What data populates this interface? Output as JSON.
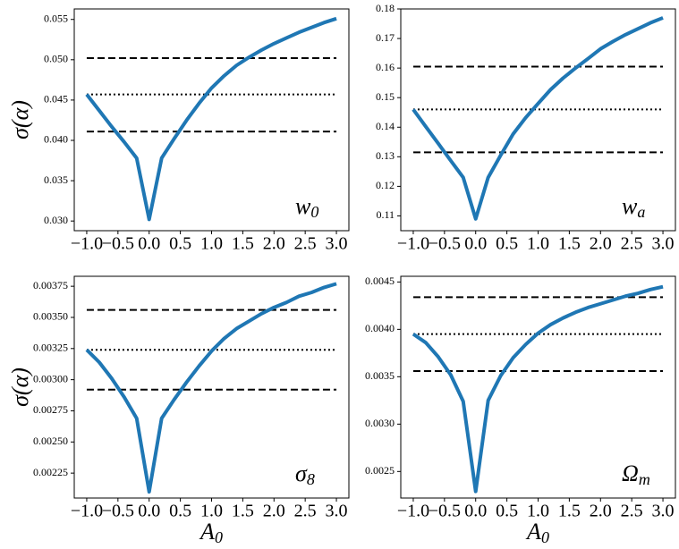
{
  "chart_data": [
    {
      "type": "line",
      "ylabel": "σ(α)",
      "annotation": {
        "text": "w",
        "sub": "0"
      },
      "x": [
        -1.0,
        -0.8,
        -0.6,
        -0.4,
        -0.2,
        0.0,
        0.2,
        0.4,
        0.6,
        0.8,
        1.0,
        1.2,
        1.4,
        1.6,
        1.8,
        2.0,
        2.2,
        2.4,
        2.6,
        2.8,
        3.0
      ],
      "series": [
        {
          "color": "#1f77b4",
          "values": [
            0.0457,
            0.0437,
            0.0417,
            0.0398,
            0.0378,
            0.0302,
            0.0378,
            0.0402,
            0.0425,
            0.0446,
            0.0465,
            0.048,
            0.0493,
            0.0503,
            0.0512,
            0.052,
            0.0527,
            0.0534,
            0.054,
            0.0546,
            0.0551
          ]
        }
      ],
      "hlines": [
        {
          "value": 0.0502,
          "style": "dashed"
        },
        {
          "value": 0.0457,
          "style": "dotted"
        },
        {
          "value": 0.0411,
          "style": "dashed"
        }
      ],
      "xlim": [
        -1.2,
        3.2
      ],
      "ylim": [
        0.0288,
        0.0563
      ],
      "xticks": [
        {
          "value": -1.0,
          "label": "−1.0"
        },
        {
          "value": -0.5,
          "label": "−0.5"
        },
        {
          "value": 0.0,
          "label": "0.0"
        },
        {
          "value": 0.5,
          "label": "0.5"
        },
        {
          "value": 1.0,
          "label": "1.0"
        },
        {
          "value": 1.5,
          "label": "1.5"
        },
        {
          "value": 2.0,
          "label": "2.0"
        },
        {
          "value": 2.5,
          "label": "2.5"
        },
        {
          "value": 3.0,
          "label": "3.0"
        }
      ],
      "yticks": [
        {
          "value": 0.03,
          "label": "0.030"
        },
        0.035,
        {
          "value": 0.04,
          "label": "0.040"
        },
        0.045,
        {
          "value": 0.05,
          "label": "0.050"
        },
        0.055
      ]
    },
    {
      "type": "line",
      "annotation": {
        "text": "w",
        "sub": "a"
      },
      "x": [
        -1.0,
        -0.8,
        -0.6,
        -0.4,
        -0.2,
        0.0,
        0.2,
        0.4,
        0.6,
        0.8,
        1.0,
        1.2,
        1.4,
        1.6,
        1.8,
        2.0,
        2.2,
        2.4,
        2.6,
        2.8,
        3.0
      ],
      "series": [
        {
          "color": "#1f77b4",
          "values": [
            0.146,
            0.1402,
            0.1345,
            0.1287,
            0.123,
            0.109,
            0.123,
            0.1305,
            0.1377,
            0.1432,
            0.148,
            0.1527,
            0.1566,
            0.16,
            0.1632,
            0.1665,
            0.169,
            0.1713,
            0.1733,
            0.1753,
            0.177
          ]
        }
      ],
      "hlines": [
        {
          "value": 0.1605,
          "style": "dashed"
        },
        {
          "value": 0.146,
          "style": "dotted"
        },
        {
          "value": 0.1315,
          "style": "dashed"
        }
      ],
      "xlim": [
        -1.2,
        3.2
      ],
      "ylim": [
        0.105,
        0.18
      ],
      "xticks": [
        {
          "value": -1.0,
          "label": "−1.0"
        },
        {
          "value": -0.5,
          "label": "−0.5"
        },
        {
          "value": 0.0,
          "label": "0.0"
        },
        {
          "value": 0.5,
          "label": "0.5"
        },
        {
          "value": 1.0,
          "label": "1.0"
        },
        {
          "value": 1.5,
          "label": "1.5"
        },
        {
          "value": 2.0,
          "label": "2.0"
        },
        {
          "value": 2.5,
          "label": "2.5"
        },
        {
          "value": 3.0,
          "label": "3.0"
        }
      ],
      "yticks": [
        0.11,
        0.12,
        0.13,
        0.14,
        0.15,
        0.16,
        0.17,
        0.18
      ]
    },
    {
      "type": "line",
      "ylabel": "σ(α)",
      "xlabel": {
        "text": "A",
        "sub": "0"
      },
      "annotation": {
        "text": "σ",
        "sub": "8"
      },
      "x": [
        -1.0,
        -0.8,
        -0.6,
        -0.4,
        -0.2,
        0.0,
        0.2,
        0.4,
        0.6,
        0.8,
        1.0,
        1.2,
        1.4,
        1.6,
        1.8,
        2.0,
        2.2,
        2.4,
        2.6,
        2.8,
        3.0
      ],
      "series": [
        {
          "color": "#1f77b4",
          "values": [
            0.00324,
            0.00314,
            0.00301,
            0.00286,
            0.00269,
            0.0021,
            0.00269,
            0.00284,
            0.00298,
            0.00311,
            0.00323,
            0.00333,
            0.00341,
            0.00347,
            0.00353,
            0.00358,
            0.00362,
            0.00367,
            0.0037,
            0.00374,
            0.00377
          ]
        }
      ],
      "hlines": [
        {
          "value": 0.00356,
          "style": "dashed"
        },
        {
          "value": 0.00324,
          "style": "dotted"
        },
        {
          "value": 0.00292,
          "style": "dashed"
        }
      ],
      "xlim": [
        -1.2,
        3.2
      ],
      "ylim": [
        0.00205,
        0.00383
      ],
      "xticks": [
        {
          "value": -1.0,
          "label": "−1.0"
        },
        {
          "value": -0.5,
          "label": "−0.5"
        },
        {
          "value": 0.0,
          "label": "0.0"
        },
        {
          "value": 0.5,
          "label": "0.5"
        },
        {
          "value": 1.0,
          "label": "1.0"
        },
        {
          "value": 1.5,
          "label": "1.5"
        },
        {
          "value": 2.0,
          "label": "2.0"
        },
        {
          "value": 2.5,
          "label": "2.5"
        },
        {
          "value": 3.0,
          "label": "3.0"
        }
      ],
      "yticks": [
        0.00225,
        {
          "value": 0.0025,
          "label": "0.00250"
        },
        0.00275,
        {
          "value": 0.003,
          "label": "0.00300"
        },
        0.00325,
        {
          "value": 0.0035,
          "label": "0.00350"
        },
        0.00375
      ]
    },
    {
      "type": "line",
      "xlabel": {
        "text": "A",
        "sub": "0"
      },
      "annotation": {
        "text": "Ω",
        "sub": "m"
      },
      "x": [
        -1.0,
        -0.8,
        -0.6,
        -0.4,
        -0.2,
        0.0,
        0.2,
        0.4,
        0.6,
        0.8,
        1.0,
        1.2,
        1.4,
        1.6,
        1.8,
        2.0,
        2.2,
        2.4,
        2.6,
        2.8,
        3.0
      ],
      "series": [
        {
          "color": "#1f77b4",
          "values": [
            0.00395,
            0.00386,
            0.00371,
            0.00352,
            0.00324,
            0.00229,
            0.00325,
            0.00351,
            0.0037,
            0.00384,
            0.00396,
            0.00405,
            0.00412,
            0.00418,
            0.00423,
            0.00427,
            0.00431,
            0.00435,
            0.00438,
            0.00442,
            0.00445
          ]
        }
      ],
      "hlines": [
        {
          "value": 0.00434,
          "style": "dashed"
        },
        {
          "value": 0.00395,
          "style": "dotted"
        },
        {
          "value": 0.00356,
          "style": "dashed"
        }
      ],
      "xlim": [
        -1.2,
        3.2
      ],
      "ylim": [
        0.00222,
        0.00456
      ],
      "xticks": [
        {
          "value": -1.0,
          "label": "−1.0"
        },
        {
          "value": -0.5,
          "label": "−0.5"
        },
        {
          "value": 0.0,
          "label": "0.0"
        },
        {
          "value": 0.5,
          "label": "0.5"
        },
        {
          "value": 1.0,
          "label": "1.0"
        },
        {
          "value": 1.5,
          "label": "1.5"
        },
        {
          "value": 2.0,
          "label": "2.0"
        },
        {
          "value": 2.5,
          "label": "2.5"
        },
        {
          "value": 3.0,
          "label": "3.0"
        }
      ],
      "yticks": [
        0.0025,
        {
          "value": 0.003,
          "label": "0.0030"
        },
        0.0035,
        {
          "value": 0.004,
          "label": "0.0040"
        },
        0.0045
      ]
    }
  ]
}
